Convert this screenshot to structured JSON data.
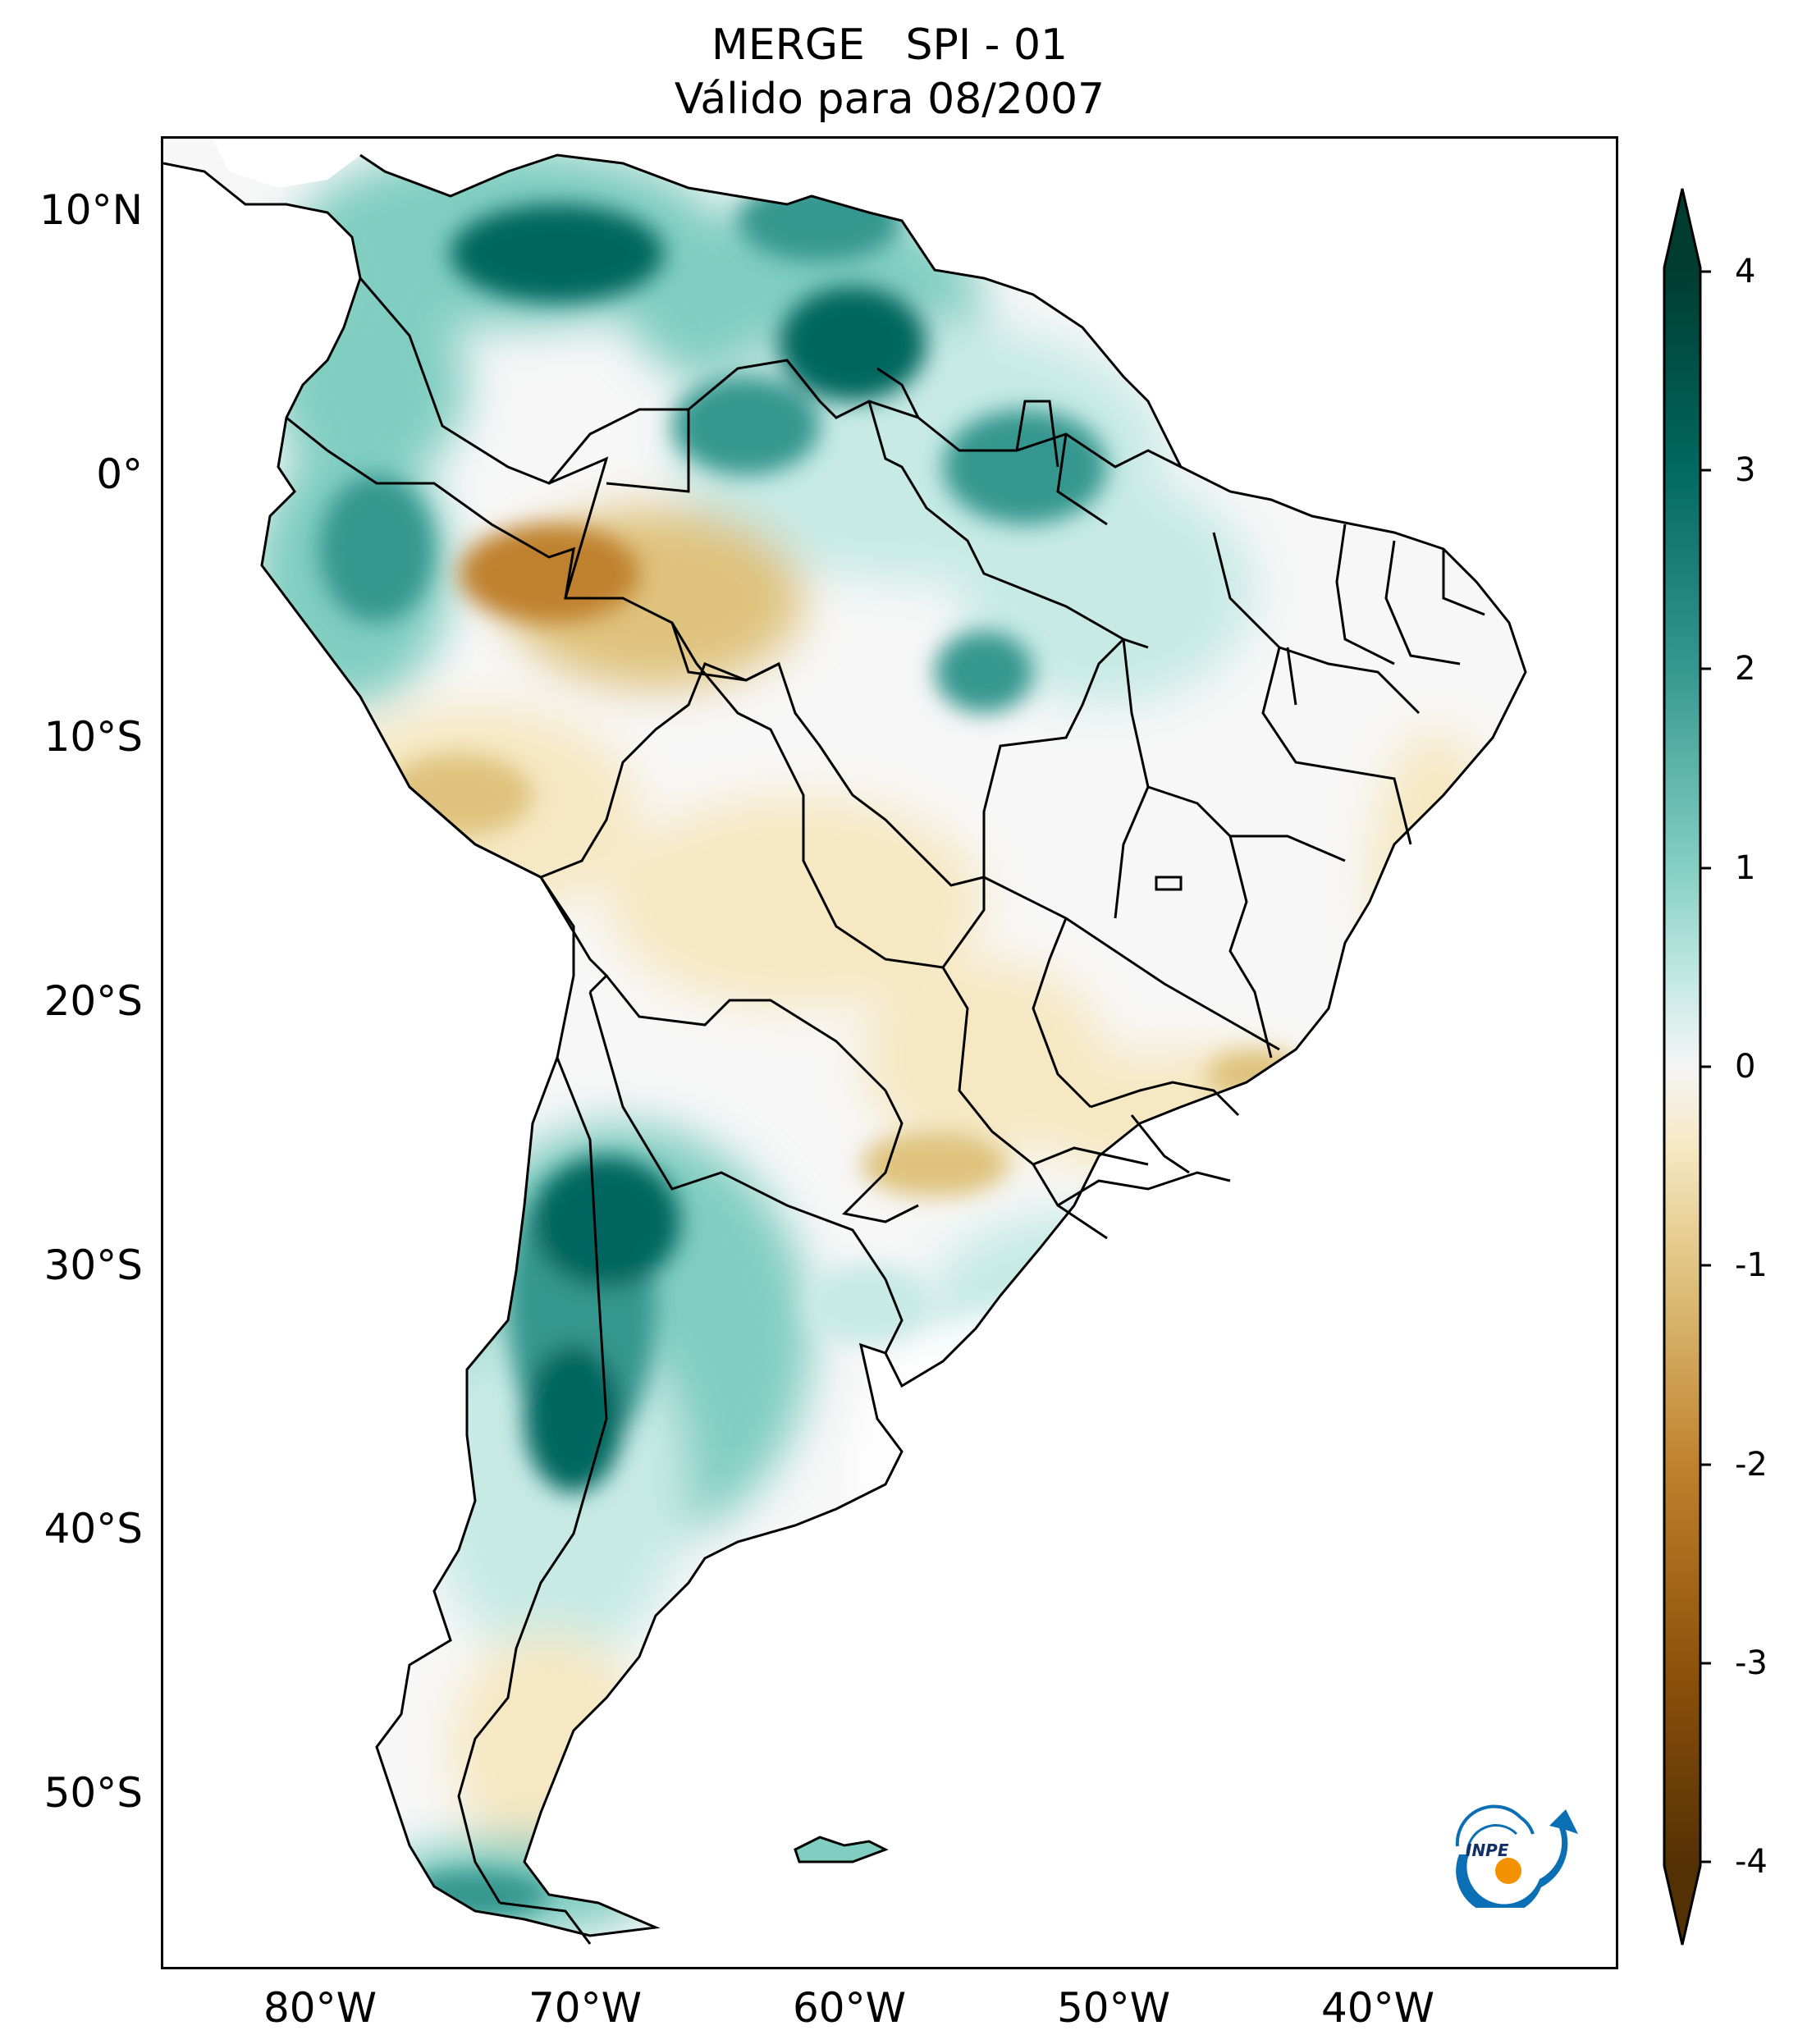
{
  "title": {
    "line1": "MERGE   SPI - 01",
    "line2": "Válido para 08/2007"
  },
  "map": {
    "region": "South America",
    "variable": "SPI - 01",
    "lat_ticks": [
      "10°N",
      "0°",
      "10°S",
      "20°S",
      "30°S",
      "40°S",
      "50°S"
    ],
    "lon_ticks": [
      "80°W",
      "70°W",
      "60°W",
      "50°W",
      "40°W"
    ]
  },
  "colorbar": {
    "min": -4,
    "max": 4,
    "ticks": [
      "4",
      "3",
      "2",
      "1",
      "0",
      "-1",
      "-2",
      "-3",
      "-4"
    ],
    "colors": {
      "wet_extreme": "#003c30",
      "wet_strong": "#01665e",
      "wet_moderate": "#35978f",
      "wet_mild": "#80cdc1",
      "wet_light": "#c7eae5",
      "neutral": "#f5f5f5",
      "dry_light": "#f6e8c3",
      "dry_mild": "#dfc27d",
      "dry_moderate": "#bf812d",
      "dry_strong": "#8c510a",
      "dry_extreme": "#543005"
    }
  },
  "logo": {
    "text": "INPE",
    "icon": "inpe-logo-icon",
    "accent": "#0a6fb5",
    "dot": "#f39200"
  }
}
